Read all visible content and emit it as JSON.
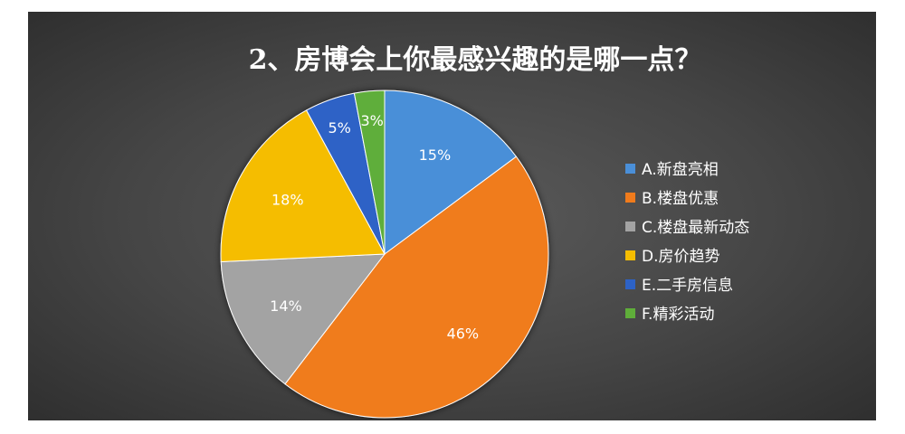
{
  "chart_data": {
    "type": "pie",
    "title": "2、房博会上你最感兴趣的是哪一点？",
    "categories": [
      "A.新盘亮相",
      "B.楼盘优惠",
      "C.楼盘最新动态",
      "D.房价趋势",
      "E.二手房信息",
      "F.精彩活动"
    ],
    "values": [
      15,
      46,
      14,
      18,
      5,
      3
    ],
    "data_labels": [
      "15%",
      "46%",
      "14%",
      "18%",
      "5%",
      "3%"
    ],
    "colors": [
      "#4a8fd8",
      "#f07b1c",
      "#a3a3a3",
      "#f5bd00",
      "#2d62c6",
      "#5fae3a"
    ],
    "legend_position": "right"
  }
}
